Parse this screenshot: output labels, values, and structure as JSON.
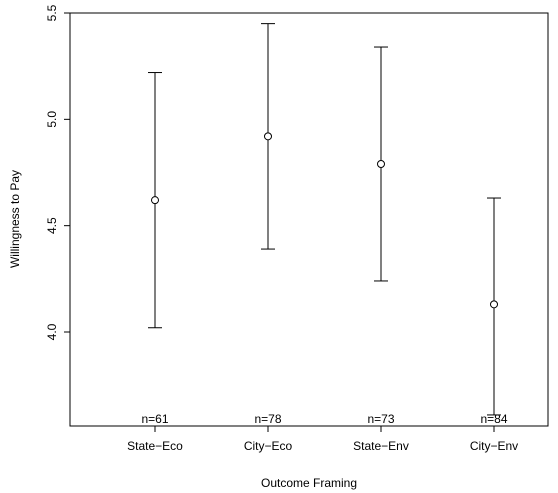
{
  "chart_data": {
    "type": "errorbar",
    "title": "",
    "xlabel": "Outcome Framing",
    "ylabel": "Willingness to Pay",
    "categories": [
      "State−Eco",
      "City−Eco",
      "State−Env",
      "City−Env"
    ],
    "means": [
      4.62,
      4.92,
      4.79,
      4.13
    ],
    "lower": [
      4.02,
      4.39,
      4.24,
      3.61
    ],
    "upper": [
      5.22,
      5.45,
      5.34,
      4.63
    ],
    "n_labels": [
      "n=61",
      "n=78",
      "n=73",
      "n=84"
    ],
    "ylim": [
      3.6,
      5.5
    ],
    "yticks": [
      4.0,
      4.5,
      5.0,
      5.5
    ],
    "ytick_labels": [
      "4.0",
      "4.5",
      "5.0",
      "5.5"
    ],
    "grid": false,
    "legend": "none"
  }
}
